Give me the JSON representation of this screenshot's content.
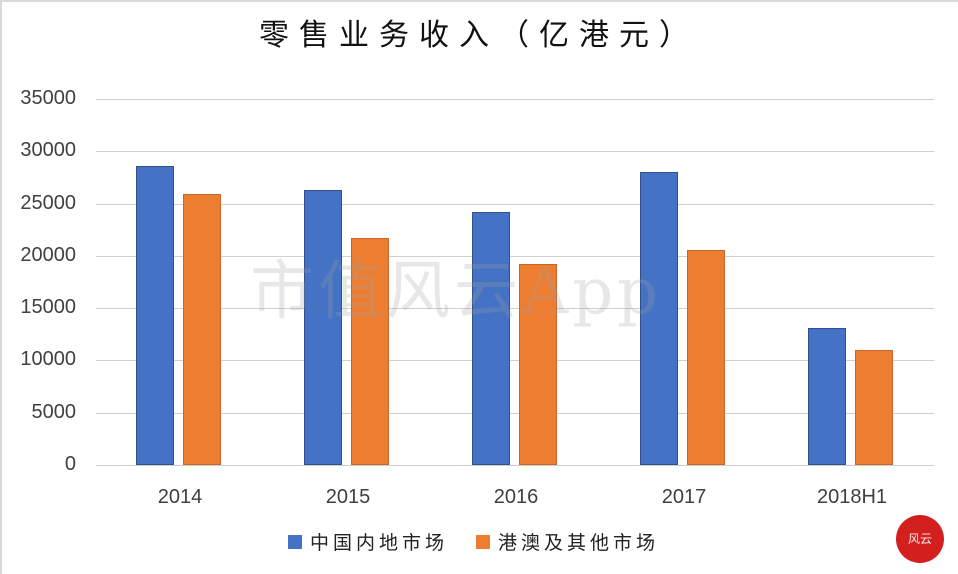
{
  "chart_data": {
    "type": "bar",
    "title": "零售业务收入（亿港元）",
    "xlabel": "",
    "ylabel": "",
    "categories": [
      "2014",
      "2015",
      "2016",
      "2017",
      "2018H1"
    ],
    "series": [
      {
        "name": "中国内地市场",
        "color": "#4472c4",
        "values": [
          28600,
          26300,
          24200,
          28000,
          13100
        ]
      },
      {
        "name": "港澳及其他市场",
        "color": "#ed7d31",
        "values": [
          25900,
          21700,
          19200,
          20600,
          11000
        ]
      }
    ],
    "ylim": [
      0,
      35000
    ],
    "yticks": [
      "0",
      "5000",
      "10000",
      "15000",
      "20000",
      "25000",
      "30000",
      "35000"
    ],
    "grid": true,
    "legend_position": "bottom"
  },
  "watermark": "市值风云App",
  "seal_text": "风云"
}
